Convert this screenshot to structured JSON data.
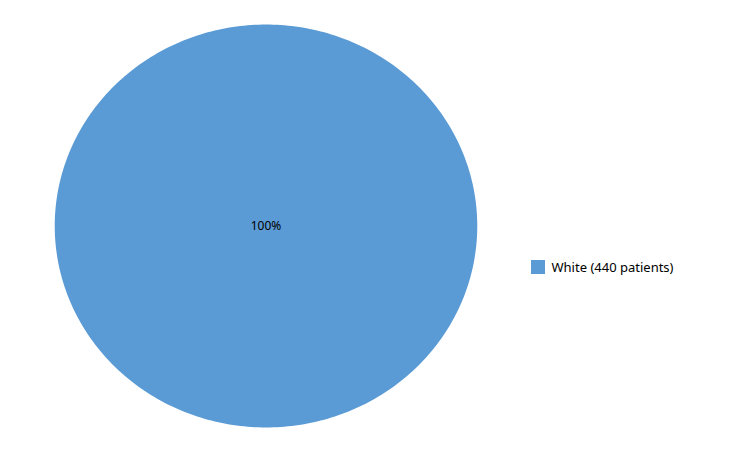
{
  "chart_data": {
    "type": "pie",
    "categories": [
      "White (440 patients)"
    ],
    "values": [
      100
    ],
    "value_labels": [
      "100%"
    ],
    "colors": [
      "#5b9bd5"
    ],
    "data_labels": true,
    "legend": "right"
  }
}
